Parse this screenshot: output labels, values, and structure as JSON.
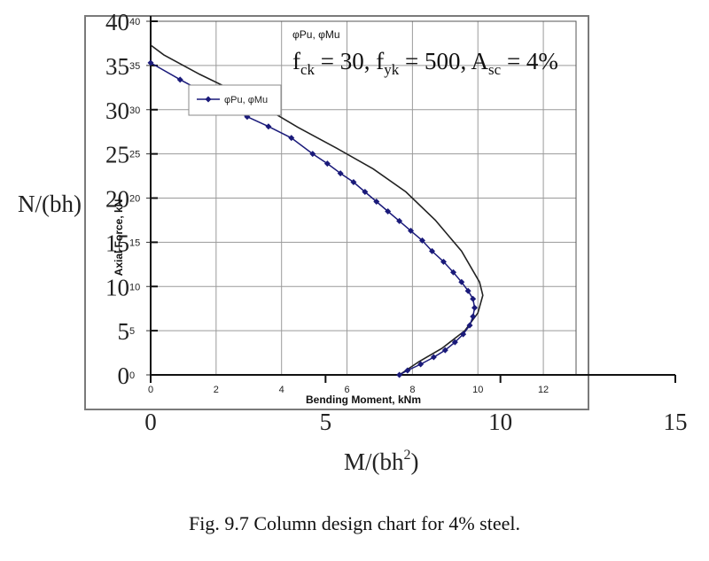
{
  "caption": "Fig. 9.7 Column design chart for 4% steel.",
  "chart_data": {
    "type": "line",
    "title": "φPu, φMu",
    "annotation": "f_ck = 30, f_yk = 500, A_sc = 4%",
    "annotation_parts": {
      "f1_base": "f",
      "f1_sub": "ck",
      "f1_val": " = 30, ",
      "f2_base": "f",
      "f2_sub": "yk",
      "f2_val": " = 500, ",
      "a_base": "A",
      "a_sub": "sc",
      "a_val": " = 4%"
    },
    "xlabel": "Bending Moment, kNm",
    "ylabel": "Axial Force, kN",
    "xlim": [
      0,
      13
    ],
    "ylim": [
      0,
      40
    ],
    "xticks": [
      "0",
      "2",
      "4",
      "6",
      "8",
      "10",
      "12"
    ],
    "yticks": [
      "0",
      "5",
      "10",
      "15",
      "20",
      "25",
      "30",
      "35",
      "40"
    ],
    "grid": true,
    "legend": {
      "placement": "top-left",
      "entries": [
        "φPu, φMu"
      ]
    },
    "colors": {
      "series": "#1a1a7a",
      "outer": "#222222",
      "grid": "#9a9a9a"
    },
    "series": [
      {
        "name": "φPu, φMu",
        "x": [
          0,
          0.9,
          1.6,
          2.3,
          2.95,
          3.6,
          4.3,
          4.95,
          5.4,
          5.8,
          6.2,
          6.55,
          6.9,
          7.25,
          7.6,
          7.95,
          8.3,
          8.6,
          8.95,
          9.25,
          9.5,
          9.7,
          9.85,
          9.9,
          9.85,
          9.75,
          9.55,
          9.3,
          9.0,
          8.65,
          8.25,
          7.85,
          7.6
        ],
        "y": [
          35.3,
          33.4,
          32.0,
          30.5,
          29.2,
          28.1,
          26.8,
          25.0,
          23.9,
          22.8,
          21.8,
          20.7,
          19.6,
          18.5,
          17.4,
          16.3,
          15.2,
          14.0,
          12.8,
          11.6,
          10.5,
          9.5,
          8.6,
          7.6,
          6.6,
          5.6,
          4.6,
          3.7,
          2.8,
          2.0,
          1.2,
          0.5,
          0.0
        ]
      }
    ],
    "outer_curve": {
      "x": [
        0,
        0.4,
        1.5,
        3,
        4.5,
        5.7,
        6.8,
        7.8,
        8.7,
        9.5,
        10.05,
        10.15,
        10.0,
        9.6,
        8.9,
        8.2,
        7.6
      ],
      "y": [
        37.3,
        36.2,
        34.0,
        31.3,
        28.0,
        25.6,
        23.3,
        20.7,
        17.5,
        14.0,
        10.5,
        9.0,
        7.0,
        5.0,
        3.0,
        1.5,
        0.0
      ]
    },
    "overlay": {
      "xlabel": "M/(bh²)",
      "xlabel_base": "M/(bh",
      "xlabel_sup": "2",
      "xlabel_tail": ")",
      "ylabel": "N/(bh)",
      "xticks": [
        "0",
        "5",
        "10",
        "15"
      ],
      "xlim": [
        0,
        15
      ],
      "yticks": [
        "0",
        "5",
        "10",
        "15",
        "20",
        "25",
        "30",
        "35",
        "40"
      ],
      "ylim": [
        0,
        40
      ]
    }
  }
}
